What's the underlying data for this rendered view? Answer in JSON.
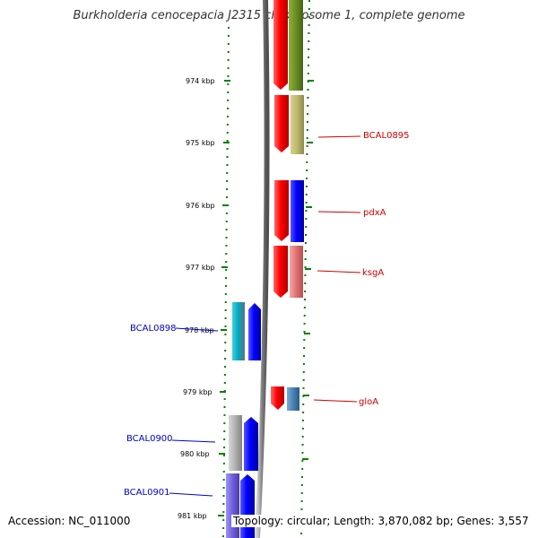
{
  "title": "Burkholderia cenocepacia J2315 chromosome 1, complete genome",
  "accession": "Accession: NC_011000",
  "summary": "Topology: circular; Length: 3,870,082 bp; Genes: 3,557",
  "ticks": [
    "974 kbp",
    "975 kbp",
    "976 kbp",
    "977 kbp",
    "978 kbp",
    "979 kbp",
    "980 kbp",
    "981 kbp"
  ],
  "colors": {
    "forward_red": "#ff0000",
    "reverse_blue": "#0000ff",
    "olive": "#6b8e23",
    "khaki": "#bdb76b",
    "pink": "#e88080",
    "steel": "#4682b4",
    "grey": "#b0b0b0",
    "slate": "#7b68ee",
    "teal": "#20b2aa",
    "right_label": "#cc0000",
    "left_label": "#0000cc",
    "ruler": "#008000"
  },
  "right_labels": [
    {
      "text": "BCAL0895",
      "name": "label-bcal0895"
    },
    {
      "text": "pdxA",
      "name": "label-pdxa"
    },
    {
      "text": "ksgA",
      "name": "label-ksga"
    },
    {
      "text": "gloA",
      "name": "label-gloa"
    }
  ],
  "left_labels": [
    {
      "text": "BCAL0898",
      "name": "label-bcal0898"
    },
    {
      "text": "BCAL0900",
      "name": "label-bcal0900"
    },
    {
      "text": "BCAL0901",
      "name": "label-bcal0901"
    }
  ]
}
